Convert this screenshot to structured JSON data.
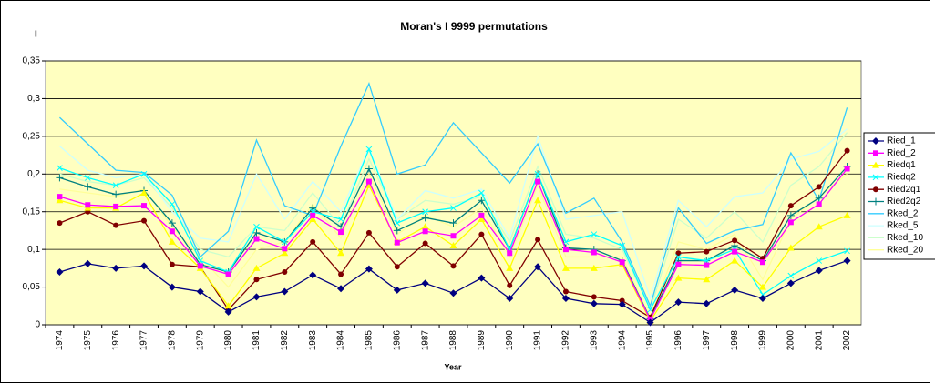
{
  "chart_data": {
    "type": "line",
    "title": "Moran's I 9999 permutations",
    "y_label": "I",
    "x_label": "Year",
    "categories": [
      "1974",
      "1975",
      "1976",
      "1977",
      "1978",
      "1979",
      "1980",
      "1981",
      "1982",
      "1983",
      "1984",
      "1985",
      "1986",
      "1987",
      "1988",
      "1989",
      "1990",
      "1991",
      "1992",
      "1993",
      "1994",
      "1995",
      "1996",
      "1997",
      "1998",
      "1999",
      "2000",
      "2001",
      "2002"
    ],
    "ylim": [
      0,
      0.35
    ],
    "yticks": [
      0,
      {
        "value": 0.05,
        "label": "0,05"
      },
      {
        "value": 0.1,
        "label": "0,1"
      },
      {
        "value": 0.15,
        "label": "0,15"
      },
      {
        "value": 0.2,
        "label": "0,2"
      },
      {
        "value": 0.25,
        "label": "0,25"
      },
      {
        "value": 0.3,
        "label": "0,3"
      },
      {
        "value": 0.35,
        "label": "0,35"
      }
    ],
    "grid": true,
    "legend": "right",
    "series": [
      {
        "name": "Ried_1",
        "color": "#000080",
        "marker": "diamond",
        "values": [
          0.07,
          0.081,
          0.075,
          0.078,
          0.05,
          0.044,
          0.017,
          0.037,
          0.044,
          0.066,
          0.048,
          0.074,
          0.046,
          0.055,
          0.042,
          0.062,
          0.035,
          0.077,
          0.035,
          0.028,
          0.027,
          0.003,
          0.03,
          0.028,
          0.046,
          0.035,
          0.055,
          0.072,
          0.085
        ]
      },
      {
        "name": "Ried_2",
        "color": "#FF00FF",
        "marker": "square",
        "values": [
          0.17,
          0.159,
          0.157,
          0.158,
          0.124,
          0.078,
          0.067,
          0.114,
          0.101,
          0.145,
          0.123,
          0.19,
          0.109,
          0.124,
          0.118,
          0.145,
          0.095,
          0.19,
          0.1,
          0.096,
          0.083,
          0.007,
          0.08,
          0.079,
          0.097,
          0.083,
          0.136,
          0.16,
          0.207
        ]
      },
      {
        "name": "Riedq1",
        "color": "#FFFF00",
        "marker": "triangle",
        "values": [
          0.165,
          0.155,
          0.155,
          0.175,
          0.11,
          0.075,
          0.025,
          0.075,
          0.095,
          0.14,
          0.095,
          0.185,
          0.11,
          0.13,
          0.105,
          0.14,
          0.075,
          0.165,
          0.075,
          0.075,
          0.08,
          0.005,
          0.062,
          0.06,
          0.085,
          0.05,
          0.102,
          0.13,
          0.145
        ]
      },
      {
        "name": "Riedq2",
        "color": "#00FFFF",
        "marker": "x",
        "values": [
          0.208,
          0.195,
          0.185,
          0.2,
          0.16,
          0.085,
          0.07,
          0.13,
          0.11,
          0.15,
          0.14,
          0.233,
          0.135,
          0.15,
          0.155,
          0.175,
          0.1,
          0.2,
          0.11,
          0.12,
          0.105,
          0.02,
          0.09,
          0.085,
          0.1,
          0.04,
          0.065,
          0.085,
          0.098
        ]
      },
      {
        "name": "Ried2q1",
        "color": "#800000",
        "marker": "circle",
        "values": [
          0.135,
          0.15,
          0.132,
          0.138,
          0.08,
          0.077,
          0.02,
          0.06,
          0.07,
          0.11,
          0.067,
          0.122,
          0.077,
          0.108,
          0.078,
          0.12,
          0.052,
          0.113,
          0.044,
          0.037,
          0.032,
          0.01,
          0.095,
          0.097,
          0.112,
          0.088,
          0.158,
          0.183,
          0.231
        ]
      },
      {
        "name": "Ried2q2",
        "color": "#008080",
        "marker": "plus",
        "values": [
          0.195,
          0.183,
          0.173,
          0.178,
          0.135,
          0.08,
          0.07,
          0.122,
          0.11,
          0.155,
          0.13,
          0.207,
          0.125,
          0.142,
          0.135,
          0.165,
          0.1,
          0.2,
          0.102,
          0.1,
          0.085,
          0.008,
          0.085,
          0.085,
          0.105,
          0.085,
          0.145,
          0.168,
          0.21
        ]
      },
      {
        "name": "Rked_2",
        "color": "#33CCFF",
        "marker": "none",
        "values": [
          0.275,
          0.24,
          0.205,
          0.202,
          0.172,
          0.09,
          0.124,
          0.245,
          0.158,
          0.145,
          0.237,
          0.32,
          0.2,
          0.212,
          0.268,
          0.228,
          0.188,
          0.24,
          0.148,
          0.168,
          0.11,
          0.025,
          0.155,
          0.108,
          0.125,
          0.133,
          0.228,
          0.165,
          0.288
        ]
      },
      {
        "name": "Rked_5",
        "color": "#CCFFFF",
        "marker": "none",
        "values": [
          0.237,
          0.205,
          0.195,
          0.2,
          0.15,
          0.115,
          0.11,
          0.2,
          0.14,
          0.19,
          0.15,
          0.235,
          0.14,
          0.178,
          0.168,
          0.18,
          0.115,
          0.25,
          0.14,
          0.145,
          0.15,
          0.035,
          0.165,
          0.13,
          0.17,
          0.175,
          0.22,
          0.23,
          0.26
        ]
      },
      {
        "name": "Rked_10",
        "color": "#CCFFCC",
        "marker": "none",
        "values": [
          0.2,
          0.19,
          0.185,
          0.195,
          0.155,
          0.1,
          0.09,
          0.13,
          0.125,
          0.175,
          0.13,
          0.22,
          0.14,
          0.165,
          0.16,
          0.17,
          0.11,
          0.21,
          0.12,
          0.115,
          0.1,
          0.02,
          0.14,
          0.115,
          0.15,
          0.11,
          0.185,
          0.21,
          0.255
        ]
      },
      {
        "name": "Rked_20",
        "color": "#FFFF99",
        "marker": "none",
        "values": [
          0.18,
          0.175,
          0.17,
          0.18,
          0.13,
          0.09,
          0.05,
          0.1,
          0.11,
          0.16,
          0.115,
          0.2,
          0.12,
          0.145,
          0.13,
          0.155,
          0.09,
          0.185,
          0.09,
          0.09,
          0.09,
          0.01,
          0.11,
          0.1,
          0.12,
          0.06,
          0.14,
          0.17,
          0.2
        ]
      }
    ]
  }
}
